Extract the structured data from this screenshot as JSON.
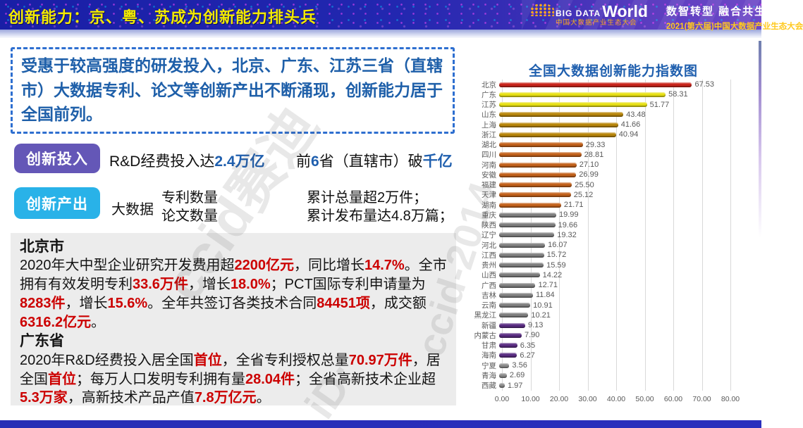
{
  "header": {
    "title": "创新能力：京、粤、苏成为创新能力排头兵",
    "logo": {
      "big": "BIG DATA",
      "world": "World",
      "tagline": "中国大数据产业生态大会"
    },
    "slogan": "数智转型 融合共生",
    "event": "2021(第六届)中国大数据产业生态大会"
  },
  "intro": {
    "text": "受惠于较高强度的研发投入，北京、广东、江苏三省（直辖市）大数据专利、论文等创新产出不断涌现，创新能力居于全国前列。"
  },
  "rows": {
    "investment": {
      "badge": "创新投入",
      "line1": [
        {
          "t": "R&D经费投入达",
          "s": "n"
        },
        {
          "t": "2.4万亿",
          "s": "b"
        }
      ],
      "line2": [
        {
          "t": "前",
          "s": "n"
        },
        {
          "t": "6",
          "s": "b"
        },
        {
          "t": "省（直辖市）破",
          "s": "n"
        },
        {
          "t": "千亿",
          "s": "b"
        }
      ]
    },
    "output": {
      "badge": "创新产出",
      "prefix": "大数据",
      "stack": [
        "专利数量",
        "论文数量"
      ],
      "results": [
        "累计总量超2万件；",
        "累计发布量达4.8万篇；"
      ]
    }
  },
  "details": {
    "beijing": {
      "title": "北京市",
      "segments": [
        {
          "t": "2020年大中型企业研究开发费用超",
          "s": "n"
        },
        {
          "t": "2200亿元",
          "s": "r"
        },
        {
          "t": "，同比增长",
          "s": "n"
        },
        {
          "t": "14.7%",
          "s": "r"
        },
        {
          "t": "。全市拥有有效发明专利",
          "s": "n"
        },
        {
          "t": "33.6万件",
          "s": "r"
        },
        {
          "t": "，增长",
          "s": "n"
        },
        {
          "t": "18.0%",
          "s": "r"
        },
        {
          "t": "；PCT国际专利申请量为",
          "s": "n"
        },
        {
          "t": "8283件",
          "s": "r"
        },
        {
          "t": "，增长",
          "s": "n"
        },
        {
          "t": "15.6%",
          "s": "r"
        },
        {
          "t": "。全年共签订各类技术合同",
          "s": "n"
        },
        {
          "t": "84451项",
          "s": "r"
        },
        {
          "t": "，成交额",
          "s": "n"
        },
        {
          "t": "6316.2亿元",
          "s": "r"
        },
        {
          "t": "。",
          "s": "n"
        }
      ]
    },
    "guangdong": {
      "title": "广东省",
      "segments": [
        {
          "t": "2020年R&D经费投入居全国",
          "s": "n"
        },
        {
          "t": "首位",
          "s": "r"
        },
        {
          "t": "，全省专利授权总量",
          "s": "n"
        },
        {
          "t": "70.97万件",
          "s": "r"
        },
        {
          "t": "，居全国",
          "s": "n"
        },
        {
          "t": "首位",
          "s": "r"
        },
        {
          "t": "；每万人口发明专利拥有量",
          "s": "n"
        },
        {
          "t": "28.04件",
          "s": "r"
        },
        {
          "t": "；全省高新技术企业超",
          "s": "n"
        },
        {
          "t": "5.3万家",
          "s": "r"
        },
        {
          "t": "，高新技术产品产值",
          "s": "n"
        },
        {
          "t": "7.8万亿元",
          "s": "r"
        },
        {
          "t": "。",
          "s": "n"
        }
      ]
    }
  },
  "watermarks": [
    "ccid赛迪",
    "ccid-2014",
    "iD:"
  ],
  "chart_data": {
    "type": "bar",
    "orientation": "horizontal",
    "title": "全国大数据创新能力指数图",
    "categories": [
      "北京",
      "广东",
      "江苏",
      "山东",
      "上海",
      "浙江",
      "湖北",
      "四川",
      "河南",
      "安徽",
      "福建",
      "天津",
      "湖南",
      "重庆",
      "陕西",
      "辽宁",
      "河北",
      "江西",
      "贵州",
      "山西",
      "广西",
      "吉林",
      "云南",
      "黑龙江",
      "新疆",
      "内蒙古",
      "甘肃",
      "海南",
      "宁夏",
      "青海",
      "西藏"
    ],
    "values": [
      67.53,
      58.31,
      51.77,
      43.48,
      41.66,
      40.94,
      29.33,
      28.81,
      27.1,
      26.99,
      25.5,
      25.12,
      21.71,
      19.99,
      19.66,
      19.32,
      16.07,
      15.72,
      15.59,
      14.22,
      12.71,
      11.84,
      10.91,
      10.21,
      9.13,
      7.9,
      6.35,
      6.27,
      3.56,
      2.69,
      1.97
    ],
    "value_labels": [
      "67.53",
      "58.31",
      "51.77",
      "43.48",
      "41.66",
      "40.94",
      "29.33",
      "28.81",
      "27.10",
      "26.99",
      "25.50",
      "25.12",
      "21.71",
      "19.99",
      "19.66",
      "19.32",
      "16.07",
      "15.72",
      "15.59",
      "14.22",
      "12.71",
      "11.84",
      "10.91",
      "10.21",
      "9.13",
      "7.90",
      "6.35",
      "6.27",
      "3.56",
      "2.69",
      "1.97"
    ],
    "bar_colors": [
      "#c9251c",
      "#e7e015",
      "#e7e015",
      "#b8860b",
      "#b8860b",
      "#b8860b",
      "#c2611b",
      "#c2611b",
      "#c2611b",
      "#c2611b",
      "#c2611b",
      "#c2611b",
      "#c2611b",
      "#7f7f7f",
      "#7f7f7f",
      "#7f7f7f",
      "#7f7f7f",
      "#7f7f7f",
      "#7f7f7f",
      "#7f7f7f",
      "#7f7f7f",
      "#7f7f7f",
      "#7f7f7f",
      "#7f7f7f",
      "#5a2d82",
      "#5a2d82",
      "#5a2d82",
      "#5a2d82",
      "#8c8c8c",
      "#8c8c8c",
      "#8c8c8c"
    ],
    "xlabel": "",
    "ylabel": "",
    "xlim": [
      0,
      80
    ],
    "xticks": [
      "0.00",
      "10.00",
      "20.00",
      "30.00",
      "40.00",
      "50.00",
      "60.00",
      "70.00",
      "80.00"
    ],
    "grid": true,
    "legend": false
  },
  "colors": {
    "accent_blue": "#1f5fae",
    "red_highlight": "#cc0000",
    "badge_purple": "#6457b7",
    "badge_cyan": "#29b2e8",
    "header_yellow": "#f2ea00"
  }
}
